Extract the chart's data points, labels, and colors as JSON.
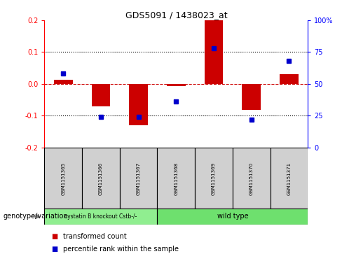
{
  "title": "GDS5091 / 1438023_at",
  "samples": [
    "GSM1151365",
    "GSM1151366",
    "GSM1151367",
    "GSM1151368",
    "GSM1151369",
    "GSM1151370",
    "GSM1151371"
  ],
  "red_bars": [
    0.012,
    -0.072,
    -0.13,
    -0.008,
    0.2,
    -0.082,
    0.03
  ],
  "blue_dots_pct": [
    58,
    24,
    24,
    36,
    78,
    22,
    68
  ],
  "ylim": [
    -0.2,
    0.2
  ],
  "yticks_left": [
    -0.2,
    -0.1,
    0.0,
    0.1,
    0.2
  ],
  "yticks_right_pct": [
    0,
    25,
    50,
    75,
    100
  ],
  "groups": [
    {
      "label": "cystatin B knockout Cstb-/-",
      "n_samples": 3,
      "color": "#90ee90"
    },
    {
      "label": "wild type",
      "n_samples": 4,
      "color": "#6ee06e"
    }
  ],
  "bar_color": "#cc0000",
  "dot_color": "#0000cc",
  "zero_line_color": "#cc0000",
  "dotted_line_color": "#000000",
  "sample_box_color": "#d0d0d0",
  "legend_red_label": "transformed count",
  "legend_blue_label": "percentile rank within the sample",
  "genotype_label": "genotype/variation",
  "bar_width": 0.5,
  "title_fontsize": 9,
  "tick_fontsize": 7,
  "sample_fontsize": 5,
  "legend_fontsize": 7,
  "genotype_fontsize": 7
}
